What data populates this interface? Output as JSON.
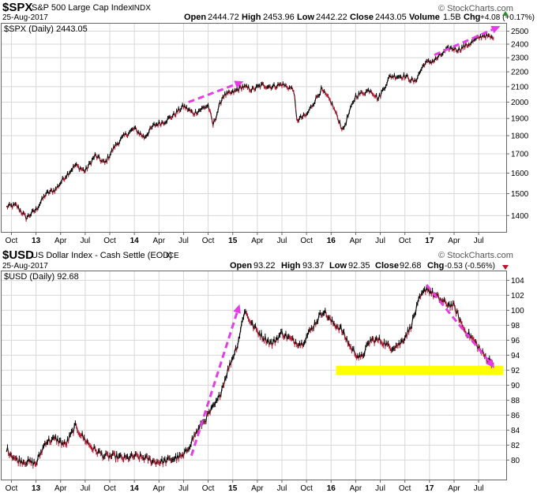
{
  "colors": {
    "price_up": "#000000",
    "price_down": "#c0102a",
    "trend_arrow": "#e63ce8",
    "support_band": "#ffff00",
    "grid": "#d8d8d8",
    "frame": "#666666",
    "chg_up_marker": "#2c8c2c",
    "chg_down_marker": "#c0102a"
  },
  "watermark": "© StockCharts.com",
  "x_axis_labels": [
    "Oct",
    "13",
    "Apr",
    "Jul",
    "Oct",
    "14",
    "Apr",
    "Jul",
    "Oct",
    "15",
    "Apr",
    "Jul",
    "Oct",
    "16",
    "Apr",
    "Jul",
    "Oct",
    "17",
    "Apr",
    "Jul"
  ],
  "chart_data": [
    {
      "type": "line",
      "symbol": "$SPX",
      "name": "S&P 500 Large Cap Index",
      "exchange": "INDX",
      "date": "25-Aug-2017",
      "legend_label": "$SPX (Daily) 2443.05",
      "stats": [
        {
          "label": "Open",
          "value": "2444.72"
        },
        {
          "label": "High",
          "value": "2453.96"
        },
        {
          "label": "Low",
          "value": "2442.22"
        },
        {
          "label": "Close",
          "value": "2443.05"
        },
        {
          "label": "Volume",
          "value": "1.5B"
        },
        {
          "label": "Chg",
          "value": "+4.08 (+0.17%)"
        }
      ],
      "chg_direction": "up",
      "y_scale": "log",
      "ylim": [
        1330,
        2560
      ],
      "y_ticks": [
        1400,
        1500,
        1600,
        1700,
        1800,
        1900,
        2000,
        2100,
        2200,
        2300,
        2400,
        2500
      ],
      "x": [
        2012.7,
        2012.8,
        2012.9,
        2013.0,
        2013.1,
        2013.2,
        2013.3,
        2013.4,
        2013.5,
        2013.6,
        2013.7,
        2013.8,
        2013.9,
        2014.0,
        2014.1,
        2014.2,
        2014.3,
        2014.4,
        2014.5,
        2014.6,
        2014.75,
        2014.8,
        2014.9,
        2015.0,
        2015.1,
        2015.2,
        2015.3,
        2015.4,
        2015.5,
        2015.62,
        2015.65,
        2015.75,
        2015.9,
        2016.0,
        2016.12,
        2016.25,
        2016.4,
        2016.48,
        2016.6,
        2016.75,
        2016.85,
        2016.95,
        2017.05,
        2017.2,
        2017.3,
        2017.4,
        2017.55,
        2017.65
      ],
      "values": [
        1440,
        1445,
        1390,
        1426,
        1498,
        1520,
        1585,
        1640,
        1610,
        1690,
        1650,
        1740,
        1800,
        1840,
        1790,
        1860,
        1880,
        1920,
        1975,
        1930,
        1980,
        1860,
        2040,
        2060,
        2100,
        2080,
        2110,
        2100,
        2115,
        2080,
        1890,
        1920,
        2080,
        2000,
        1830,
        2040,
        2080,
        2020,
        2170,
        2170,
        2130,
        2260,
        2280,
        2370,
        2360,
        2400,
        2470,
        2443
      ],
      "annotations": [
        {
          "type": "trend_arrow",
          "from": [
            2014.55,
            2000
          ],
          "to": [
            2015.11,
            2135
          ]
        },
        {
          "type": "trend_arrow",
          "from": [
            2017.05,
            2320
          ],
          "to": [
            2017.72,
            2540
          ]
        }
      ]
    },
    {
      "type": "line",
      "symbol": "$USD",
      "name": "US Dollar Index - Cash Settle (EOD)",
      "exchange": "ICE",
      "date": "25-Aug-2017",
      "legend_label": "$USD (Daily) 92.68",
      "stats": [
        {
          "label": "Open",
          "value": "93.22"
        },
        {
          "label": "High",
          "value": "93.37"
        },
        {
          "label": "Low",
          "value": "92.35"
        },
        {
          "label": "Close",
          "value": "92.68"
        },
        {
          "label": "Chg",
          "value": "-0.53 (-0.56%)"
        }
      ],
      "chg_direction": "down",
      "y_scale": "linear",
      "ylim": [
        77.4,
        105.2
      ],
      "y_ticks": [
        80,
        82,
        84,
        86,
        88,
        90,
        92,
        94,
        96,
        98,
        100,
        102,
        104
      ],
      "x": [
        2012.7,
        2012.8,
        2012.9,
        2013.0,
        2013.1,
        2013.2,
        2013.3,
        2013.4,
        2013.48,
        2013.58,
        2013.7,
        2013.8,
        2013.9,
        2014.0,
        2014.1,
        2014.2,
        2014.3,
        2014.4,
        2014.5,
        2014.62,
        2014.75,
        2014.85,
        2014.95,
        2015.05,
        2015.12,
        2015.2,
        2015.3,
        2015.4,
        2015.5,
        2015.6,
        2015.7,
        2015.8,
        2015.92,
        2016.0,
        2016.1,
        2016.2,
        2016.3,
        2016.4,
        2016.5,
        2016.6,
        2016.7,
        2016.8,
        2016.9,
        2016.97,
        2017.05,
        2017.15,
        2017.25,
        2017.35,
        2017.45,
        2017.55,
        2017.62,
        2017.65
      ],
      "values": [
        81.5,
        80.0,
        79.8,
        79.5,
        82.5,
        82.8,
        82.0,
        84.5,
        83.0,
        81.5,
        80.5,
        80.5,
        80.2,
        80.5,
        80.3,
        79.8,
        79.8,
        80.2,
        80.5,
        83.5,
        86.0,
        88.0,
        92.0,
        95.5,
        100.0,
        98.0,
        96.5,
        95.5,
        97.0,
        96.0,
        95.5,
        97.5,
        100.0,
        98.5,
        97.5,
        95.0,
        93.5,
        96.0,
        96.0,
        95.0,
        95.5,
        97.5,
        101.5,
        103.0,
        102.0,
        101.0,
        100.5,
        97.5,
        96.0,
        94.0,
        93.2,
        92.68
      ],
      "annotations": [
        {
          "type": "trend_arrow",
          "from": [
            2014.58,
            80.6
          ],
          "to": [
            2015.07,
            100.8
          ]
        },
        {
          "type": "trend_arrow",
          "from": [
            2016.97,
            103.4
          ],
          "to": [
            2017.66,
            92.3
          ]
        },
        {
          "type": "support_band",
          "x_from": 2016.05,
          "x_to": 2017.75,
          "y_from": 91.4,
          "y_to": 92.6
        }
      ]
    }
  ]
}
